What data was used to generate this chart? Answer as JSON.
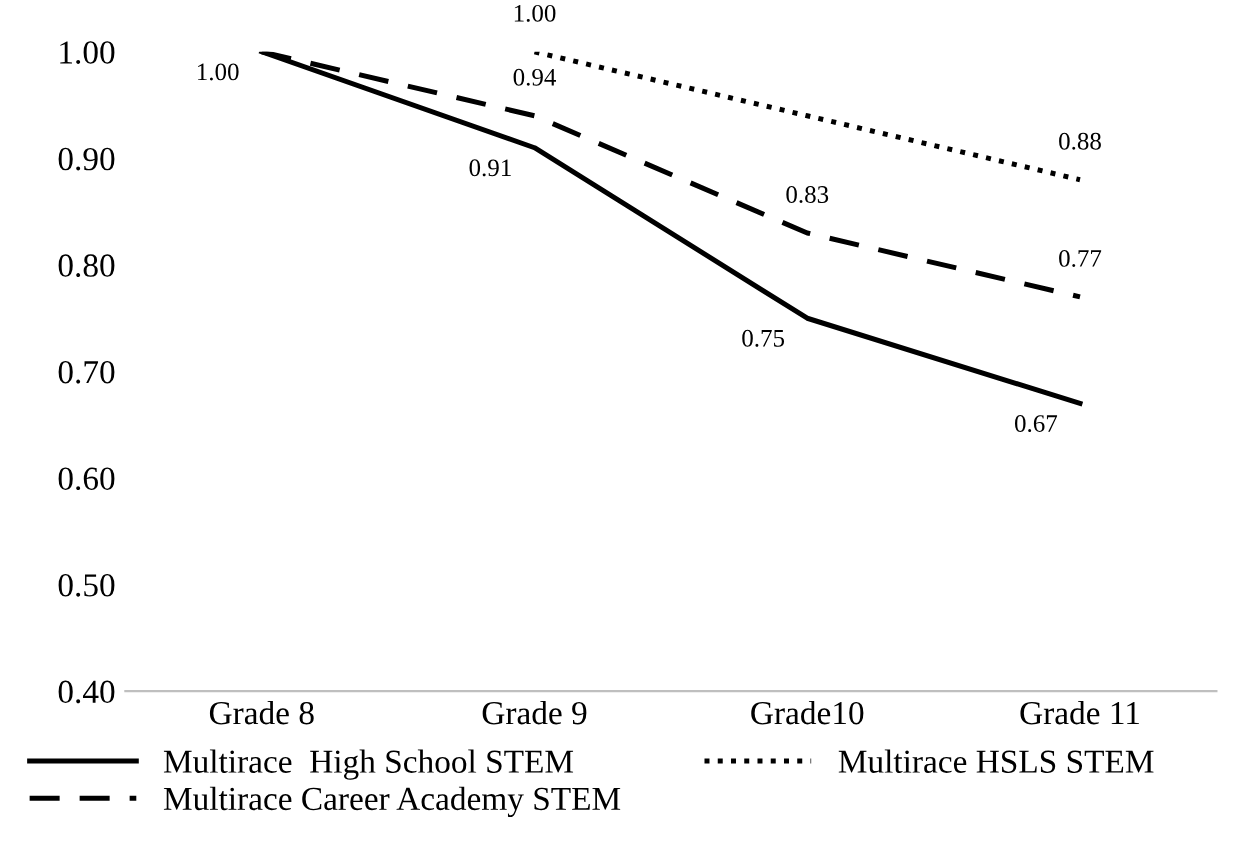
{
  "chart_data": {
    "type": "line",
    "categories": [
      "Grade 8",
      "Grade 9",
      "Grade10",
      "Grade 11"
    ],
    "series": [
      {
        "name": "Multirace  High School STEM",
        "color": "#000000",
        "line_style": "solid",
        "values": [
          1.0,
          0.91,
          0.75,
          0.67
        ],
        "value_labels": [
          "1.00",
          "0.91",
          "0.75",
          "0.67"
        ]
      },
      {
        "name": "Multirace Career Academy STEM",
        "color": "#000000",
        "line_style": "dashed",
        "values": [
          1.0,
          0.94,
          0.83,
          0.77
        ],
        "value_labels": [
          null,
          "0.94",
          "0.83",
          "0.77"
        ]
      },
      {
        "name": "Multirace HSLS STEM",
        "color": "#000000",
        "line_style": "dotted",
        "values": [
          null,
          1.0,
          0.94,
          0.88
        ],
        "value_labels": [
          null,
          "1.00",
          null,
          "0.88"
        ]
      }
    ],
    "ylim": [
      0.4,
      1.0
    ],
    "yticks": [
      {
        "value": 0.4,
        "label": "0.40"
      },
      {
        "value": 0.5,
        "label": "0.50"
      },
      {
        "value": 0.6,
        "label": "0.60"
      },
      {
        "value": 0.7,
        "label": "0.70"
      },
      {
        "value": 0.8,
        "label": "0.80"
      },
      {
        "value": 0.9,
        "label": "0.90"
      },
      {
        "value": 1.0,
        "label": "1.00"
      }
    ],
    "grid": false,
    "legend": "bottom",
    "marker": "none"
  }
}
